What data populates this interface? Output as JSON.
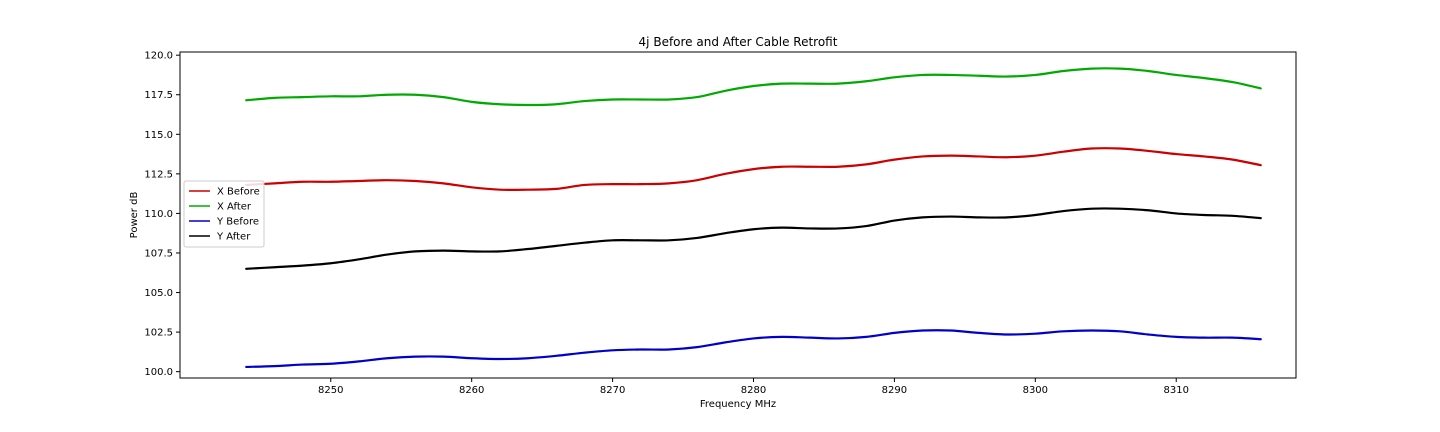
{
  "chart_data": {
    "type": "line",
    "title": "4j Before and After Cable Retrofit",
    "xlabel": "Frequency MHz",
    "ylabel": "Power dB",
    "xlim": [
      8239.3,
      8318.5
    ],
    "ylim": [
      99.6,
      120.2
    ],
    "x_ticks": [
      8250,
      8260,
      8270,
      8280,
      8290,
      8300,
      8310
    ],
    "x_tick_labels": [
      "8250",
      "8260",
      "8270",
      "8280",
      "8290",
      "8300",
      "8310"
    ],
    "y_ticks": [
      100.0,
      102.5,
      105.0,
      107.5,
      110.0,
      112.5,
      115.0,
      117.5,
      120.0
    ],
    "y_tick_labels": [
      "100.0",
      "102.5",
      "105.0",
      "107.5",
      "110.0",
      "112.5",
      "115.0",
      "117.5",
      "120.0"
    ],
    "grid": false,
    "legend_position": "center-left",
    "x": [
      8244,
      8246,
      8248,
      8250,
      8252,
      8254,
      8256,
      8258,
      8260,
      8262,
      8264,
      8266,
      8268,
      8270,
      8272,
      8274,
      8276,
      8278,
      8280,
      8282,
      8284,
      8286,
      8288,
      8290,
      8292,
      8294,
      8296,
      8298,
      8300,
      8302,
      8304,
      8306,
      8308,
      8310,
      8312,
      8314,
      8316
    ],
    "series": [
      {
        "name": "X Before",
        "color": "#cc0000",
        "values": [
          111.8,
          111.9,
          112.0,
          112.0,
          112.05,
          112.1,
          112.05,
          111.9,
          111.65,
          111.5,
          111.5,
          111.55,
          111.8,
          111.85,
          111.85,
          111.9,
          112.1,
          112.5,
          112.8,
          112.95,
          112.95,
          112.95,
          113.1,
          113.4,
          113.6,
          113.65,
          113.6,
          113.55,
          113.65,
          113.9,
          114.1,
          114.1,
          113.95,
          113.75,
          113.6,
          113.4,
          113.05
        ]
      },
      {
        "name": "X After",
        "color": "#00aa00",
        "values": [
          117.15,
          117.3,
          117.35,
          117.4,
          117.4,
          117.5,
          117.5,
          117.35,
          117.05,
          116.9,
          116.85,
          116.9,
          117.1,
          117.2,
          117.2,
          117.2,
          117.35,
          117.75,
          118.05,
          118.2,
          118.2,
          118.2,
          118.35,
          118.6,
          118.75,
          118.75,
          118.7,
          118.65,
          118.75,
          119.0,
          119.15,
          119.15,
          119.0,
          118.75,
          118.55,
          118.3,
          117.9
        ]
      },
      {
        "name": "Y Before",
        "color": "#0000cc",
        "values": [
          100.3,
          100.35,
          100.45,
          100.5,
          100.65,
          100.85,
          100.95,
          100.95,
          100.85,
          100.8,
          100.85,
          101.0,
          101.2,
          101.35,
          101.4,
          101.4,
          101.55,
          101.85,
          102.1,
          102.2,
          102.15,
          102.1,
          102.2,
          102.45,
          102.6,
          102.6,
          102.45,
          102.35,
          102.4,
          102.55,
          102.6,
          102.55,
          102.35,
          102.2,
          102.15,
          102.15,
          102.05
        ]
      },
      {
        "name": "Y After",
        "color": "#000000",
        "values": [
          106.5,
          106.6,
          106.7,
          106.85,
          107.1,
          107.4,
          107.6,
          107.65,
          107.6,
          107.6,
          107.75,
          107.95,
          108.15,
          108.3,
          108.3,
          108.3,
          108.45,
          108.75,
          109.0,
          109.1,
          109.05,
          109.05,
          109.2,
          109.55,
          109.75,
          109.8,
          109.75,
          109.75,
          109.9,
          110.15,
          110.3,
          110.3,
          110.2,
          110.0,
          109.9,
          109.85,
          109.7
        ]
      }
    ]
  }
}
